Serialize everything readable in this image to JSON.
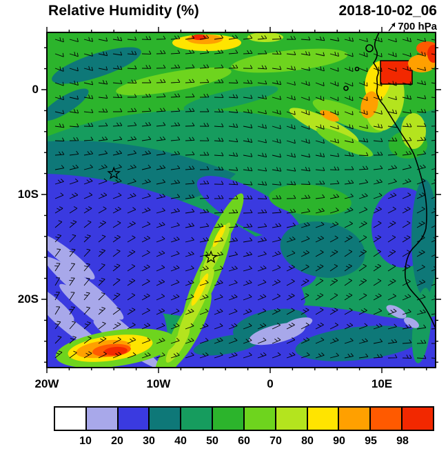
{
  "header": {
    "title": "Relative Humidity (%)",
    "date": "2018-10-02_06",
    "level": "700 hPa"
  },
  "axes": {
    "y_ticks": [
      "0",
      "10S",
      "20S"
    ],
    "x_ticks": [
      "20W",
      "10W",
      "0",
      "10E"
    ]
  },
  "colorbar": {
    "labels": [
      "10",
      "20",
      "30",
      "40",
      "50",
      "60",
      "70",
      "80",
      "90",
      "95",
      "98"
    ],
    "colors": [
      "#ffffff",
      "#a8a8ea",
      "#3a3ae0",
      "#0e7878",
      "#169c5e",
      "#2cb42c",
      "#6ed41e",
      "#b4e41e",
      "#ffe400",
      "#ffa000",
      "#ff5a00",
      "#f22800"
    ]
  },
  "chart_data": {
    "type": "heatmap",
    "title": "Relative Humidity (%)",
    "valid_time": "2018-10-02_06",
    "level": "700 hPa",
    "units": "%",
    "x_axis": {
      "ticks": [
        "20W",
        "10W",
        "0",
        "10E"
      ],
      "range_deg": [
        -20,
        14.8
      ],
      "minor_tick_deg": 2
    },
    "y_axis": {
      "ticks": [
        "0",
        "10S",
        "20S"
      ],
      "range_deg": [
        -26.5,
        5.5
      ],
      "minor_tick_deg": 2
    },
    "contour_levels": [
      10,
      20,
      30,
      40,
      50,
      60,
      70,
      80,
      90,
      95,
      98
    ],
    "palette": [
      "#ffffff",
      "#a8a8ea",
      "#3a3ae0",
      "#0e7878",
      "#169c5e",
      "#2cb42c",
      "#6ed41e",
      "#b4e41e",
      "#ffe400",
      "#ffa000",
      "#ff5a00",
      "#f22800"
    ],
    "overlays": [
      "wind-barbs",
      "coastline",
      "star-markers",
      "boxed-region"
    ],
    "stars_deg": [
      {
        "lon": -14,
        "lat": -8
      },
      {
        "lon": -5.3,
        "lat": -16
      }
    ],
    "boxed_region_deg": {
      "lon": [
        10,
        12.7
      ],
      "lat": [
        0.5,
        2.8
      ]
    },
    "field_summary": [
      {
        "region": "north of 5S (tropical band)",
        "rh": "50-80 with maxima 90-98 near 6W-0 at top edge and along 10-13E near the coast"
      },
      {
        "region": "subtropical Atlantic 5S-22S west of 5E",
        "rh": "20-40, streaks of 10-20 near 13-20W south of 14S"
      },
      {
        "region": "diagonal moist band from 9W,26S to 4W,13S",
        "rh": "60-90"
      },
      {
        "region": "near 14W,25S",
        "rh": "local maximum 90-98"
      },
      {
        "region": "near 0E,23S",
        "rh": "dry patch 10-20"
      },
      {
        "region": "coastal Angola/Namibia strip",
        "rh": "20-50 with small 10-20 patches near 12E,21S"
      }
    ]
  }
}
